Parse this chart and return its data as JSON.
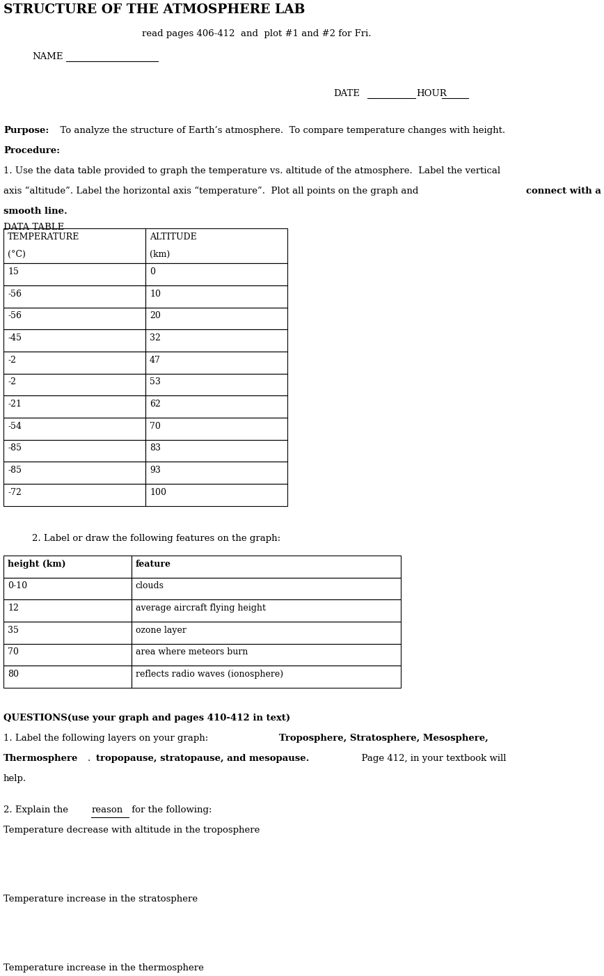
{
  "title": "STRUCTURE OF THE ATMOSPHERE LAB",
  "subtitle": "read pages 406-412  and  plot #1 and #2 for Fri.",
  "name_label": "NAME",
  "date_label": "DATE",
  "hour_label": "HOUR",
  "purpose_bold": "Purpose:",
  "purpose_text": "  To analyze the structure of Earth’s atmosphere.  To compare temperature changes with height.",
  "procedure_bold": "Procedure:",
  "data_table_label": "DATA TABLE",
  "data_headers": [
    "TEMPERATURE\n(°C)",
    "ALTITUDE\n(km)"
  ],
  "data_rows": [
    [
      "15",
      "0"
    ],
    [
      "-56",
      "10"
    ],
    [
      "-56",
      "20"
    ],
    [
      "-45",
      "32"
    ],
    [
      "-2",
      "47"
    ],
    [
      "-2",
      "53"
    ],
    [
      "-21",
      "62"
    ],
    [
      "-54",
      "70"
    ],
    [
      "-85",
      "83"
    ],
    [
      "-85",
      "93"
    ],
    [
      "-72",
      "100"
    ]
  ],
  "section2_label": "2. Label or draw the following features on the graph:",
  "feature_headers": [
    "height (km)",
    "feature"
  ],
  "feature_rows": [
    [
      "0-10",
      "clouds"
    ],
    [
      "12",
      "average aircraft flying height"
    ],
    [
      "35",
      "ozone layer"
    ],
    [
      "70",
      "area where meteors burn"
    ],
    [
      "80",
      "reflects radio waves (ionosphere)"
    ]
  ],
  "questions_bold": "QUESTIONS(use your graph and pages 410-412 in text)",
  "q2_trop": "Temperature decrease with altitude in the troposphere",
  "q2_strat": "Temperature increase in the stratosphere",
  "q2_thermo": "Temperature increase in the thermosphere",
  "bg_color": "#ffffff",
  "text_color": "#000000"
}
